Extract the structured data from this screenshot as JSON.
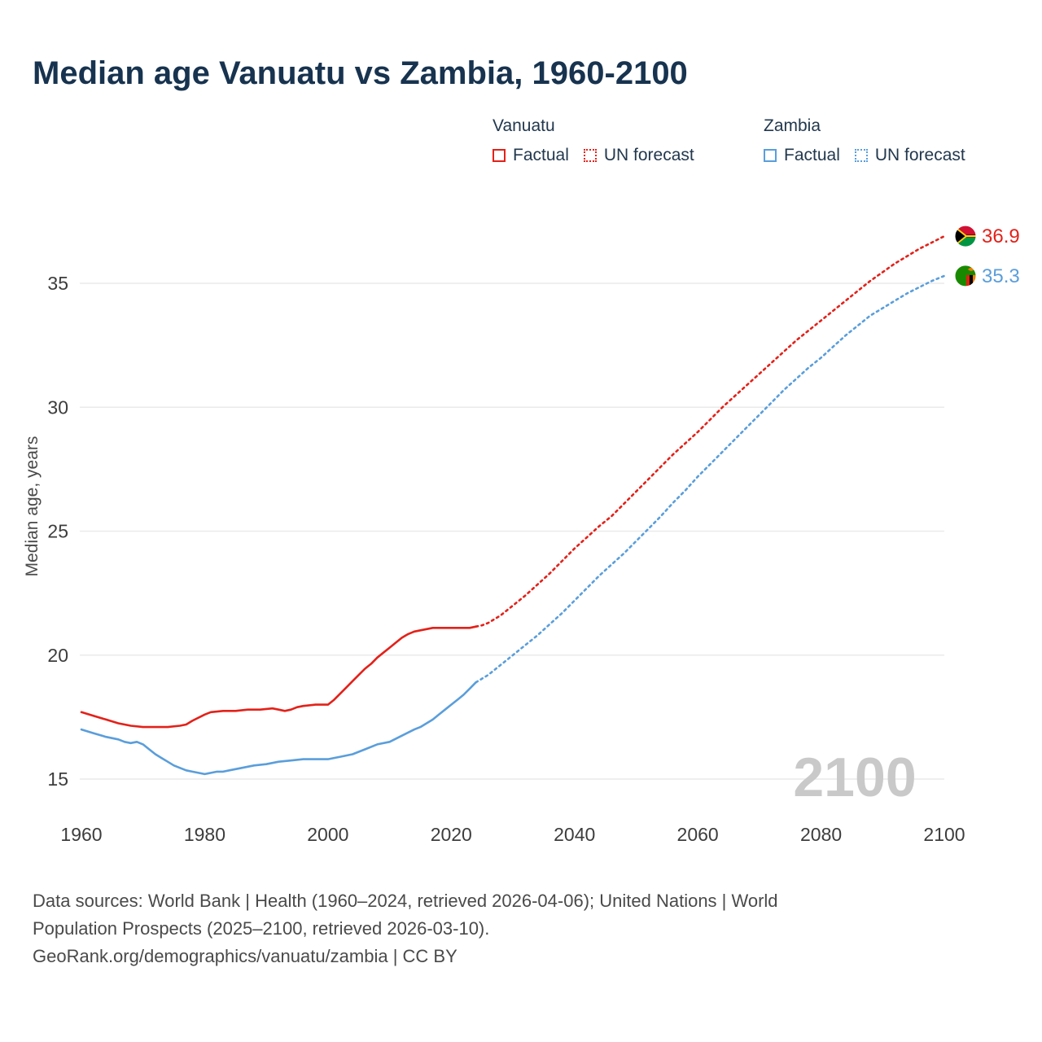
{
  "page": {
    "title": "Median age Vanuatu vs Zambia, 1960-2100"
  },
  "legend": {
    "groups": [
      {
        "country": "Vanuatu",
        "color": "#e32119",
        "items": [
          {
            "label": "Factual",
            "style": "solid"
          },
          {
            "label": "UN forecast",
            "style": "dotted"
          }
        ]
      },
      {
        "country": "Zambia",
        "color": "#5a9edb",
        "items": [
          {
            "label": "Factual",
            "style": "solid"
          },
          {
            "label": "UN forecast",
            "style": "dotted"
          }
        ]
      }
    ]
  },
  "chart_data": {
    "type": "line",
    "title": "Median age Vanuatu vs Zambia, 1960-2100",
    "xlabel": "",
    "ylabel": "Median age, years",
    "xlim": [
      1960,
      2100
    ],
    "ylim": [
      13.5,
      38
    ],
    "x_ticks": [
      1960,
      1980,
      2000,
      2020,
      2040,
      2060,
      2080,
      2100
    ],
    "y_ticks": [
      15,
      20,
      25,
      30,
      35
    ],
    "grid": "horizontal",
    "legend_position": "top",
    "watermark": "2100",
    "colors": {
      "vanuatu": "#e32119",
      "zambia": "#5a9edb"
    },
    "series": [
      {
        "id": "vanuatu-factual",
        "name": "Vanuatu Factual",
        "color": "#e32119",
        "style": "solid",
        "points": [
          [
            1960,
            17.7
          ],
          [
            1962,
            17.55
          ],
          [
            1964,
            17.4
          ],
          [
            1966,
            17.25
          ],
          [
            1968,
            17.15
          ],
          [
            1970,
            17.1
          ],
          [
            1972,
            17.1
          ],
          [
            1974,
            17.1
          ],
          [
            1976,
            17.15
          ],
          [
            1977,
            17.2
          ],
          [
            1978,
            17.35
          ],
          [
            1980,
            17.6
          ],
          [
            1981,
            17.7
          ],
          [
            1983,
            17.75
          ],
          [
            1985,
            17.75
          ],
          [
            1987,
            17.8
          ],
          [
            1989,
            17.8
          ],
          [
            1991,
            17.85
          ],
          [
            1992,
            17.8
          ],
          [
            1993,
            17.75
          ],
          [
            1994,
            17.8
          ],
          [
            1995,
            17.9
          ],
          [
            1996,
            17.95
          ],
          [
            1998,
            18.0
          ],
          [
            2000,
            18.0
          ],
          [
            2001,
            18.2
          ],
          [
            2002,
            18.45
          ],
          [
            2003,
            18.7
          ],
          [
            2004,
            18.95
          ],
          [
            2005,
            19.2
          ],
          [
            2006,
            19.45
          ],
          [
            2007,
            19.65
          ],
          [
            2008,
            19.9
          ],
          [
            2009,
            20.1
          ],
          [
            2010,
            20.3
          ],
          [
            2011,
            20.5
          ],
          [
            2012,
            20.7
          ],
          [
            2013,
            20.85
          ],
          [
            2014,
            20.95
          ],
          [
            2015,
            21.0
          ],
          [
            2016,
            21.05
          ],
          [
            2017,
            21.1
          ],
          [
            2018,
            21.1
          ],
          [
            2019,
            21.1
          ],
          [
            2020,
            21.1
          ],
          [
            2021,
            21.1
          ],
          [
            2022,
            21.1
          ],
          [
            2023,
            21.1
          ],
          [
            2024,
            21.15
          ]
        ]
      },
      {
        "id": "vanuatu-forecast",
        "name": "Vanuatu UN forecast",
        "color": "#e32119",
        "style": "dotted",
        "points": [
          [
            2024,
            21.15
          ],
          [
            2025,
            21.2
          ],
          [
            2026,
            21.3
          ],
          [
            2028,
            21.6
          ],
          [
            2030,
            22.0
          ],
          [
            2032,
            22.4
          ],
          [
            2034,
            22.85
          ],
          [
            2036,
            23.3
          ],
          [
            2038,
            23.8
          ],
          [
            2040,
            24.3
          ],
          [
            2042,
            24.75
          ],
          [
            2044,
            25.2
          ],
          [
            2046,
            25.6
          ],
          [
            2048,
            26.1
          ],
          [
            2050,
            26.6
          ],
          [
            2052,
            27.1
          ],
          [
            2054,
            27.6
          ],
          [
            2056,
            28.1
          ],
          [
            2058,
            28.55
          ],
          [
            2060,
            29.0
          ],
          [
            2062,
            29.5
          ],
          [
            2064,
            30.0
          ],
          [
            2066,
            30.45
          ],
          [
            2068,
            30.9
          ],
          [
            2070,
            31.35
          ],
          [
            2072,
            31.8
          ],
          [
            2074,
            32.25
          ],
          [
            2076,
            32.7
          ],
          [
            2078,
            33.1
          ],
          [
            2080,
            33.5
          ],
          [
            2082,
            33.9
          ],
          [
            2084,
            34.3
          ],
          [
            2086,
            34.7
          ],
          [
            2088,
            35.1
          ],
          [
            2090,
            35.45
          ],
          [
            2092,
            35.8
          ],
          [
            2094,
            36.1
          ],
          [
            2096,
            36.4
          ],
          [
            2098,
            36.65
          ],
          [
            2100,
            36.9
          ]
        ]
      },
      {
        "id": "zambia-factual",
        "name": "Zambia Factual",
        "color": "#5a9edb",
        "style": "solid",
        "points": [
          [
            1960,
            17.0
          ],
          [
            1962,
            16.85
          ],
          [
            1964,
            16.7
          ],
          [
            1966,
            16.6
          ],
          [
            1967,
            16.5
          ],
          [
            1968,
            16.45
          ],
          [
            1969,
            16.5
          ],
          [
            1970,
            16.4
          ],
          [
            1971,
            16.2
          ],
          [
            1972,
            16.0
          ],
          [
            1973,
            15.85
          ],
          [
            1974,
            15.7
          ],
          [
            1975,
            15.55
          ],
          [
            1976,
            15.45
          ],
          [
            1977,
            15.35
          ],
          [
            1978,
            15.3
          ],
          [
            1979,
            15.25
          ],
          [
            1980,
            15.2
          ],
          [
            1981,
            15.25
          ],
          [
            1982,
            15.3
          ],
          [
            1983,
            15.3
          ],
          [
            1984,
            15.35
          ],
          [
            1986,
            15.45
          ],
          [
            1988,
            15.55
          ],
          [
            1990,
            15.6
          ],
          [
            1992,
            15.7
          ],
          [
            1994,
            15.75
          ],
          [
            1996,
            15.8
          ],
          [
            1998,
            15.8
          ],
          [
            2000,
            15.8
          ],
          [
            2001,
            15.85
          ],
          [
            2002,
            15.9
          ],
          [
            2004,
            16.0
          ],
          [
            2005,
            16.1
          ],
          [
            2006,
            16.2
          ],
          [
            2008,
            16.4
          ],
          [
            2010,
            16.5
          ],
          [
            2012,
            16.75
          ],
          [
            2014,
            17.0
          ],
          [
            2015,
            17.1
          ],
          [
            2016,
            17.25
          ],
          [
            2017,
            17.4
          ],
          [
            2018,
            17.6
          ],
          [
            2019,
            17.8
          ],
          [
            2020,
            18.0
          ],
          [
            2021,
            18.2
          ],
          [
            2022,
            18.4
          ],
          [
            2023,
            18.65
          ],
          [
            2024,
            18.9
          ]
        ]
      },
      {
        "id": "zambia-forecast",
        "name": "Zambia UN forecast",
        "color": "#5a9edb",
        "style": "dotted",
        "points": [
          [
            2024,
            18.9
          ],
          [
            2026,
            19.2
          ],
          [
            2028,
            19.6
          ],
          [
            2030,
            20.0
          ],
          [
            2032,
            20.4
          ],
          [
            2034,
            20.8
          ],
          [
            2036,
            21.25
          ],
          [
            2038,
            21.7
          ],
          [
            2040,
            22.2
          ],
          [
            2042,
            22.7
          ],
          [
            2044,
            23.2
          ],
          [
            2046,
            23.65
          ],
          [
            2048,
            24.1
          ],
          [
            2050,
            24.6
          ],
          [
            2052,
            25.1
          ],
          [
            2054,
            25.6
          ],
          [
            2056,
            26.15
          ],
          [
            2058,
            26.65
          ],
          [
            2060,
            27.2
          ],
          [
            2062,
            27.7
          ],
          [
            2064,
            28.2
          ],
          [
            2066,
            28.7
          ],
          [
            2068,
            29.2
          ],
          [
            2070,
            29.7
          ],
          [
            2072,
            30.2
          ],
          [
            2074,
            30.7
          ],
          [
            2076,
            31.15
          ],
          [
            2078,
            31.6
          ],
          [
            2080,
            32.0
          ],
          [
            2082,
            32.45
          ],
          [
            2084,
            32.9
          ],
          [
            2086,
            33.3
          ],
          [
            2088,
            33.7
          ],
          [
            2090,
            34.0
          ],
          [
            2092,
            34.3
          ],
          [
            2094,
            34.6
          ],
          [
            2096,
            34.85
          ],
          [
            2098,
            35.1
          ],
          [
            2100,
            35.3
          ]
        ]
      }
    ],
    "end_labels": [
      {
        "flag": "vanuatu",
        "series": "Vanuatu",
        "value": "36.9",
        "y": 36.9,
        "color": "#e32119"
      },
      {
        "flag": "zambia",
        "series": "Zambia",
        "value": "35.3",
        "y": 35.3,
        "color": "#5a9edb"
      }
    ]
  },
  "footer": {
    "sources_line1": "Data sources: World Bank | Health (1960–2024, retrieved 2026-04-06); United Nations | World",
    "sources_line2": "Population Prospects (2025–2100, retrieved 2026-03-10).",
    "link": "GeoRank.org/demographics/vanuatu/zambia | CC BY"
  }
}
